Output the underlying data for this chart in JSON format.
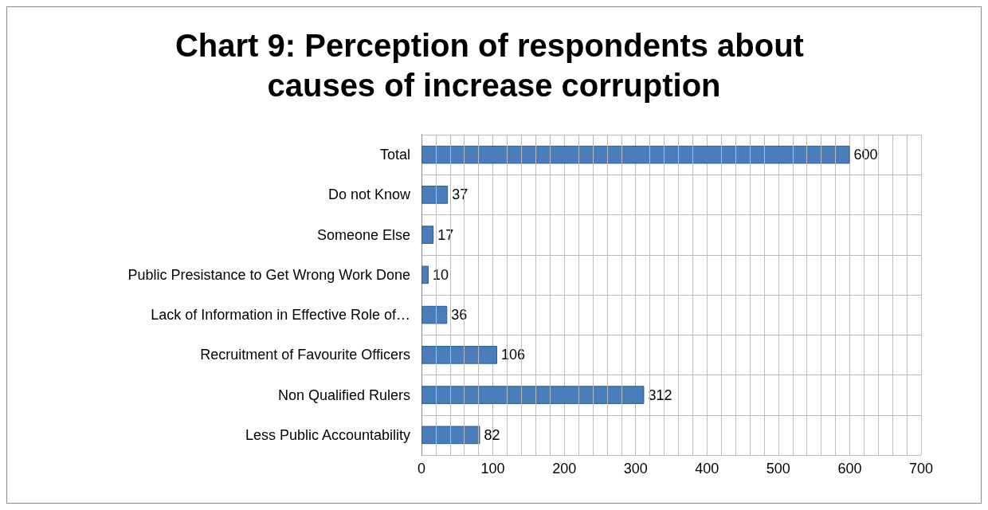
{
  "chart_data": {
    "type": "bar",
    "orientation": "horizontal",
    "title": "Chart 9: Perception of respondents about causes of increase corruption",
    "categories": [
      "Total",
      "Do not Know",
      "Someone Else",
      "Public Presistance to Get Wrong Work Done",
      "Lack of Information in Effective Role of…",
      "Recruitment of Favourite Officers",
      "Non Qualified Rulers",
      "Less Public Accountability"
    ],
    "values": [
      600,
      37,
      17,
      10,
      36,
      106,
      312,
      82
    ],
    "color": "#4a7ebb",
    "xlim": [
      0,
      700
    ],
    "xticks": [
      0,
      100,
      200,
      300,
      400,
      500,
      600,
      700
    ],
    "grid": true,
    "data_labels": true
  }
}
